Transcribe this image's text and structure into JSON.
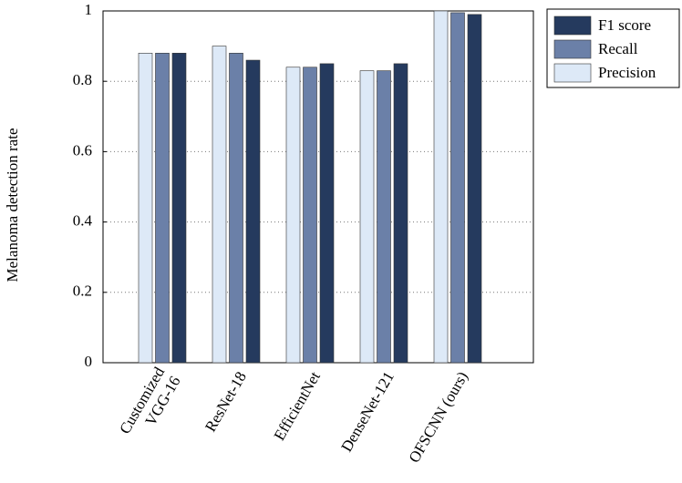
{
  "chart_data": {
    "type": "bar",
    "y_label": "Melanoma detection rate",
    "categories": [
      "Customized VGG-16",
      "ResNet-18",
      "EfficientNet",
      "DenseNet-121",
      "OFSCNN (ours)"
    ],
    "series": [
      {
        "name": "Precision",
        "color": "#dde9f7",
        "values": [
          0.88,
          0.9,
          0.84,
          0.83,
          1.0
        ]
      },
      {
        "name": "Recall",
        "color": "#6b80a8",
        "values": [
          0.88,
          0.88,
          0.84,
          0.83,
          0.995
        ]
      },
      {
        "name": "F1 score",
        "color": "#253a5e",
        "values": [
          0.88,
          0.86,
          0.85,
          0.85,
          0.99
        ]
      }
    ],
    "ylim": [
      0,
      1
    ],
    "yticks": [
      0,
      0.2,
      0.4,
      0.6,
      0.8,
      1
    ],
    "grid": true,
    "legend": "outside-top-right"
  }
}
